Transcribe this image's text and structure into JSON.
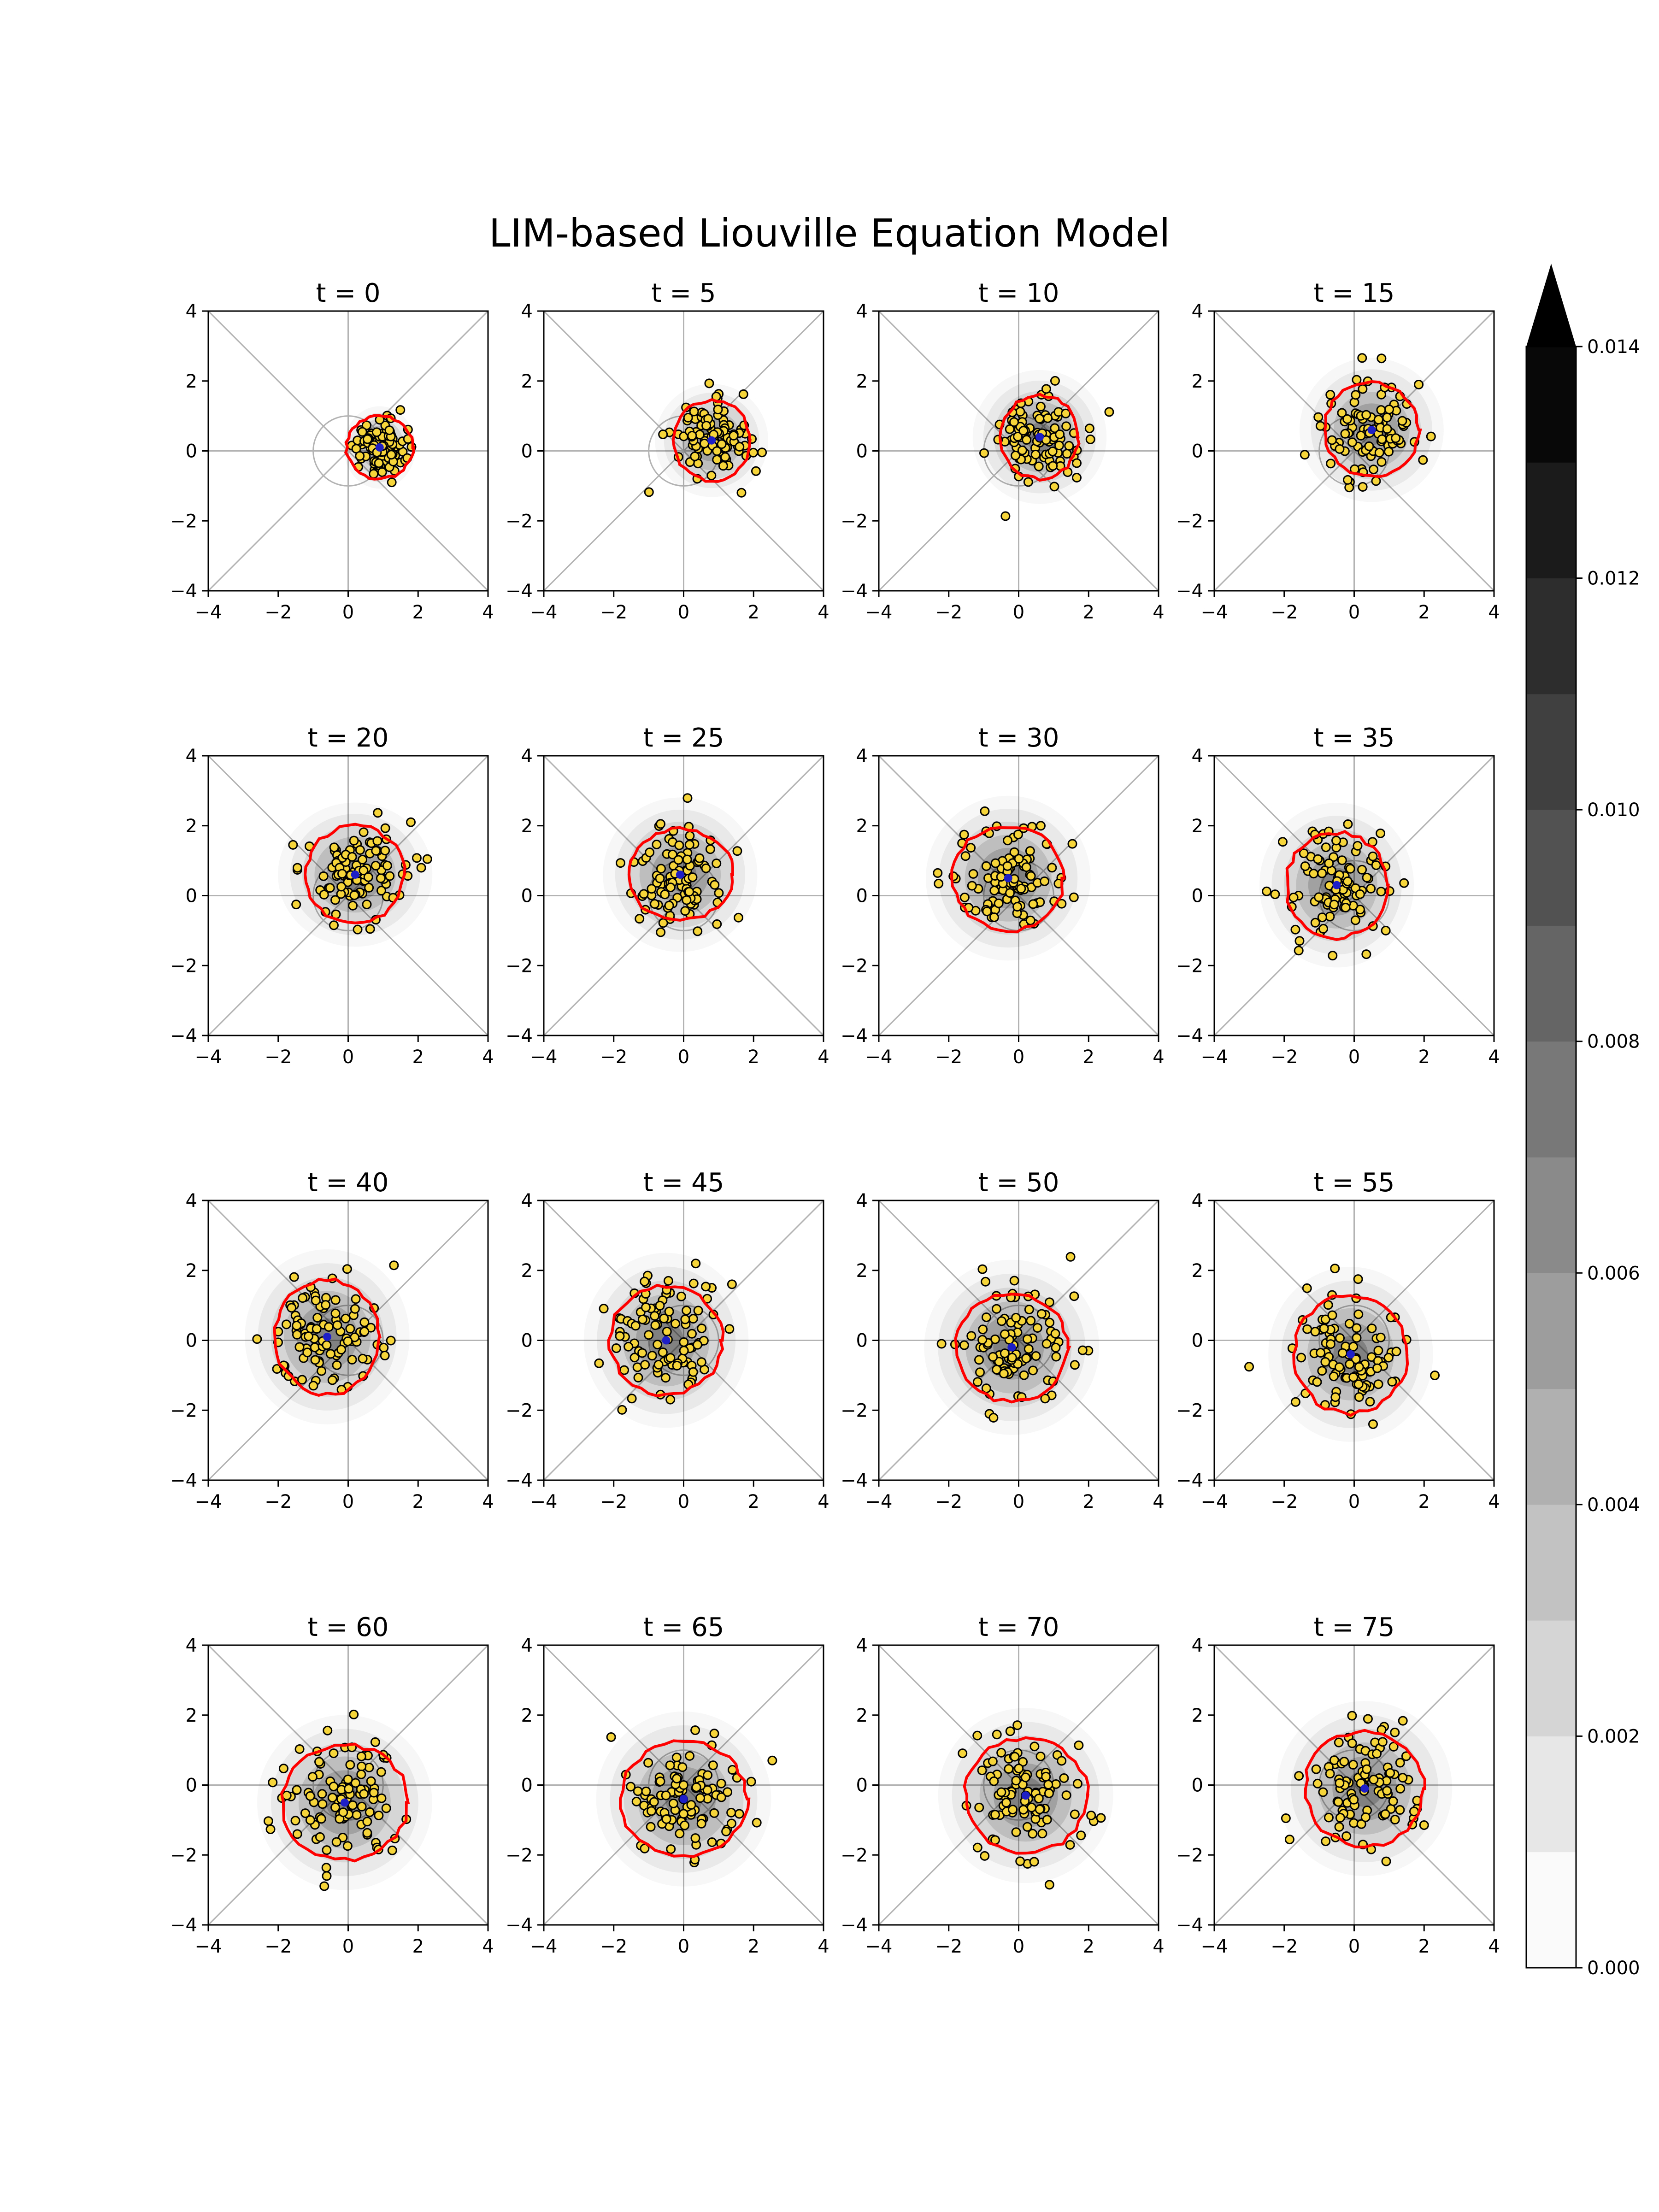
{
  "title": "LIM-based Liouville Equation Model",
  "colors": {
    "points_fill": "#f5d53a",
    "points_edge": "#000000",
    "contour": "#ff0000",
    "mean_marker": "#1f1fc8",
    "guides": "#b3b3b3"
  },
  "chart_data": {
    "type": "scatter",
    "description_of_panels": "16 panels of a 2D point ensemble with a red probability contour and grey density shading",
    "xlim": [
      -4,
      4
    ],
    "ylim": [
      -4,
      4
    ],
    "xticks": [
      "−4",
      "−2",
      "0",
      "2",
      "4"
    ],
    "yticks": [
      "−4",
      "−2",
      "0",
      "2",
      "4"
    ],
    "points_per_panel": 100,
    "panels": [
      {
        "label": "t = 0",
        "t": 0,
        "mean": [
          0.9,
          0.1
        ],
        "spread": [
          0.35,
          0.4
        ],
        "contour_radius": [
          0.95,
          0.9
        ]
      },
      {
        "label": "t = 5",
        "t": 5,
        "mean": [
          0.8,
          0.3
        ],
        "spread": [
          0.55,
          0.55
        ],
        "contour_radius": [
          1.1,
          1.15
        ]
      },
      {
        "label": "t = 10",
        "t": 10,
        "mean": [
          0.6,
          0.4
        ],
        "spread": [
          0.65,
          0.65
        ],
        "contour_radius": [
          1.1,
          1.2
        ]
      },
      {
        "label": "t = 15",
        "t": 15,
        "mean": [
          0.5,
          0.6
        ],
        "spread": [
          0.7,
          0.7
        ],
        "contour_radius": [
          1.35,
          1.35
        ]
      },
      {
        "label": "t = 20",
        "t": 20,
        "mean": [
          0.2,
          0.6
        ],
        "spread": [
          0.75,
          0.7
        ],
        "contour_radius": [
          1.4,
          1.4
        ]
      },
      {
        "label": "t = 25",
        "t": 25,
        "mean": [
          -0.1,
          0.6
        ],
        "spread": [
          0.75,
          0.75
        ],
        "contour_radius": [
          1.5,
          1.3
        ]
      },
      {
        "label": "t = 30",
        "t": 30,
        "mean": [
          -0.3,
          0.5
        ],
        "spread": [
          0.8,
          0.8
        ],
        "contour_radius": [
          1.6,
          1.5
        ]
      },
      {
        "label": "t = 35",
        "t": 35,
        "mean": [
          -0.5,
          0.3
        ],
        "spread": [
          0.75,
          0.8
        ],
        "contour_radius": [
          1.45,
          1.5
        ]
      },
      {
        "label": "t = 40",
        "t": 40,
        "mean": [
          -0.6,
          0.1
        ],
        "spread": [
          0.8,
          0.85
        ],
        "contour_radius": [
          1.5,
          1.65
        ]
      },
      {
        "label": "t = 45",
        "t": 45,
        "mean": [
          -0.5,
          0.0
        ],
        "spread": [
          0.8,
          0.85
        ],
        "contour_radius": [
          1.6,
          1.55
        ]
      },
      {
        "label": "t = 50",
        "t": 50,
        "mean": [
          -0.2,
          -0.2
        ],
        "spread": [
          0.85,
          0.85
        ],
        "contour_radius": [
          1.6,
          1.55
        ]
      },
      {
        "label": "t = 55",
        "t": 55,
        "mean": [
          -0.1,
          -0.4
        ],
        "spread": [
          0.8,
          0.85
        ],
        "contour_radius": [
          1.6,
          1.7
        ]
      },
      {
        "label": "t = 60",
        "t": 60,
        "mean": [
          -0.1,
          -0.5
        ],
        "spread": [
          0.85,
          0.85
        ],
        "contour_radius": [
          1.8,
          1.65
        ]
      },
      {
        "label": "t = 65",
        "t": 65,
        "mean": [
          0.0,
          -0.4
        ],
        "spread": [
          0.85,
          0.85
        ],
        "contour_radius": [
          1.8,
          1.65
        ]
      },
      {
        "label": "t = 70",
        "t": 70,
        "mean": [
          0.2,
          -0.3
        ],
        "spread": [
          0.85,
          0.85
        ],
        "contour_radius": [
          1.75,
          1.65
        ]
      },
      {
        "label": "t = 75",
        "t": 75,
        "mean": [
          0.3,
          -0.1
        ],
        "spread": [
          0.85,
          0.85
        ],
        "contour_radius": [
          1.7,
          1.65
        ]
      }
    ],
    "colorbar": {
      "ticks": [
        "0.000",
        "0.002",
        "0.004",
        "0.006",
        "0.008",
        "0.010",
        "0.012",
        "0.014"
      ],
      "min": 0.0,
      "max": 0.014,
      "levels": 14,
      "extend": "max"
    }
  }
}
